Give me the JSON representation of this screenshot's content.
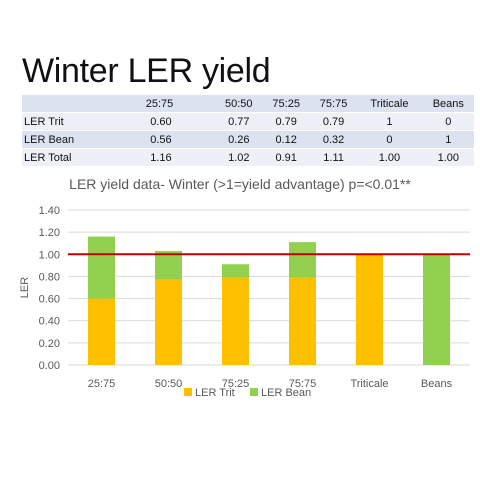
{
  "slide": {
    "title": "Winter LER yield"
  },
  "table": {
    "columns": [
      "",
      "25:75",
      "50:50",
      "75:25",
      "75:75",
      "Triticale",
      "Beans"
    ],
    "rows": [
      {
        "label": "LER Trit",
        "values": [
          "0.60",
          "0.77",
          "0.79",
          "0.79",
          "1",
          "0"
        ]
      },
      {
        "label": "LER Bean",
        "values": [
          "0.56",
          "0.26",
          "0.12",
          "0.32",
          "0",
          "1"
        ]
      },
      {
        "label": "LER Total",
        "values": [
          "1.16",
          "1.02",
          "0.91",
          "1.11",
          "1.00",
          "1.00"
        ]
      }
    ]
  },
  "chart_data": {
    "type": "bar",
    "stacked": true,
    "title": "LER yield data- Winter (>1=yield advantage) p=<0.01**",
    "xlabel": "",
    "ylabel": "LER",
    "categories": [
      "25:75",
      "50:50",
      "75:25",
      "75:75",
      "Triticale",
      "Beans"
    ],
    "series": [
      {
        "name": "LER Trit",
        "color": "#ffc000",
        "values": [
          0.6,
          0.77,
          0.79,
          0.79,
          1.0,
          0.0
        ]
      },
      {
        "name": "LER Bean",
        "color": "#92d050",
        "values": [
          0.56,
          0.26,
          0.12,
          0.32,
          0.0,
          1.0
        ]
      }
    ],
    "ylim": [
      0,
      1.4
    ],
    "yticks": [
      "0.00",
      "0.20",
      "0.40",
      "0.60",
      "0.80",
      "1.00",
      "1.20",
      "1.40"
    ],
    "reference_line": {
      "value": 1.0,
      "color": "#c00000"
    },
    "grid": true,
    "legend_position": "bottom"
  }
}
